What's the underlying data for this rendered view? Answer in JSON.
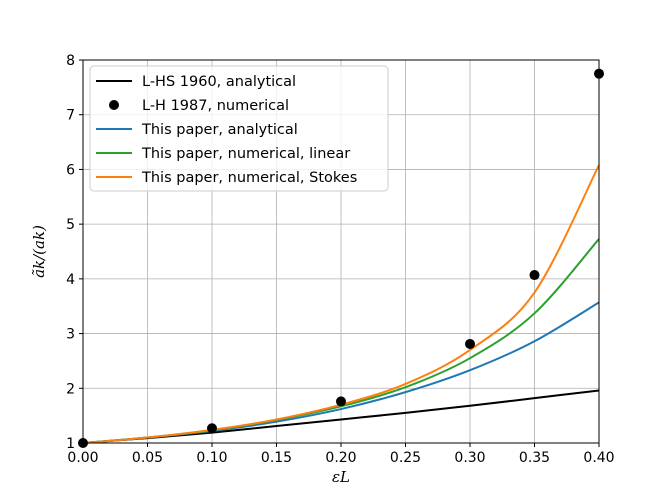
{
  "chart_data": {
    "type": "line",
    "title": "",
    "xlabel": "εL",
    "ylabel": "ãk/(ak)",
    "xlim": [
      0.0,
      0.4
    ],
    "ylim": [
      1,
      8
    ],
    "xticks": [
      "0.00",
      "0.05",
      "0.10",
      "0.15",
      "0.20",
      "0.25",
      "0.30",
      "0.35",
      "0.40"
    ],
    "yticks": [
      "1",
      "2",
      "3",
      "4",
      "5",
      "6",
      "7",
      "8"
    ],
    "grid": true,
    "legend_position": "top-left",
    "series": [
      {
        "name": "L-HS 1960, analytical",
        "style": "line",
        "color": "#000000",
        "x": [
          0.0,
          0.05,
          0.1,
          0.15,
          0.2,
          0.25,
          0.3,
          0.35,
          0.4
        ],
        "y": [
          1.0,
          1.09,
          1.19,
          1.31,
          1.43,
          1.55,
          1.68,
          1.82,
          1.96
        ]
      },
      {
        "name": "L-H 1987, numerical",
        "style": "markers",
        "color": "#000000",
        "x": [
          0.0,
          0.1,
          0.2,
          0.3,
          0.35,
          0.4
        ],
        "y": [
          1.0,
          1.27,
          1.76,
          2.81,
          4.07,
          7.75
        ]
      },
      {
        "name": "This paper, analytical",
        "style": "line",
        "color": "#1f77b4",
        "x": [
          0.0,
          0.05,
          0.1,
          0.15,
          0.2,
          0.25,
          0.3,
          0.35,
          0.4
        ],
        "y": [
          1.0,
          1.1,
          1.22,
          1.39,
          1.62,
          1.93,
          2.33,
          2.86,
          3.57
        ]
      },
      {
        "name": "This paper, numerical, linear",
        "style": "line",
        "color": "#2ca02c",
        "x": [
          0.0,
          0.05,
          0.1,
          0.15,
          0.2,
          0.25,
          0.3,
          0.35,
          0.4
        ],
        "y": [
          1.0,
          1.1,
          1.23,
          1.42,
          1.67,
          2.02,
          2.55,
          3.37,
          4.73
        ]
      },
      {
        "name": "This paper, numerical, Stokes",
        "style": "line",
        "color": "#ff7f0e",
        "x": [
          0.0,
          0.05,
          0.1,
          0.15,
          0.2,
          0.25,
          0.3,
          0.35,
          0.4
        ],
        "y": [
          1.0,
          1.1,
          1.24,
          1.43,
          1.7,
          2.08,
          2.7,
          3.75,
          6.08
        ]
      }
    ]
  }
}
